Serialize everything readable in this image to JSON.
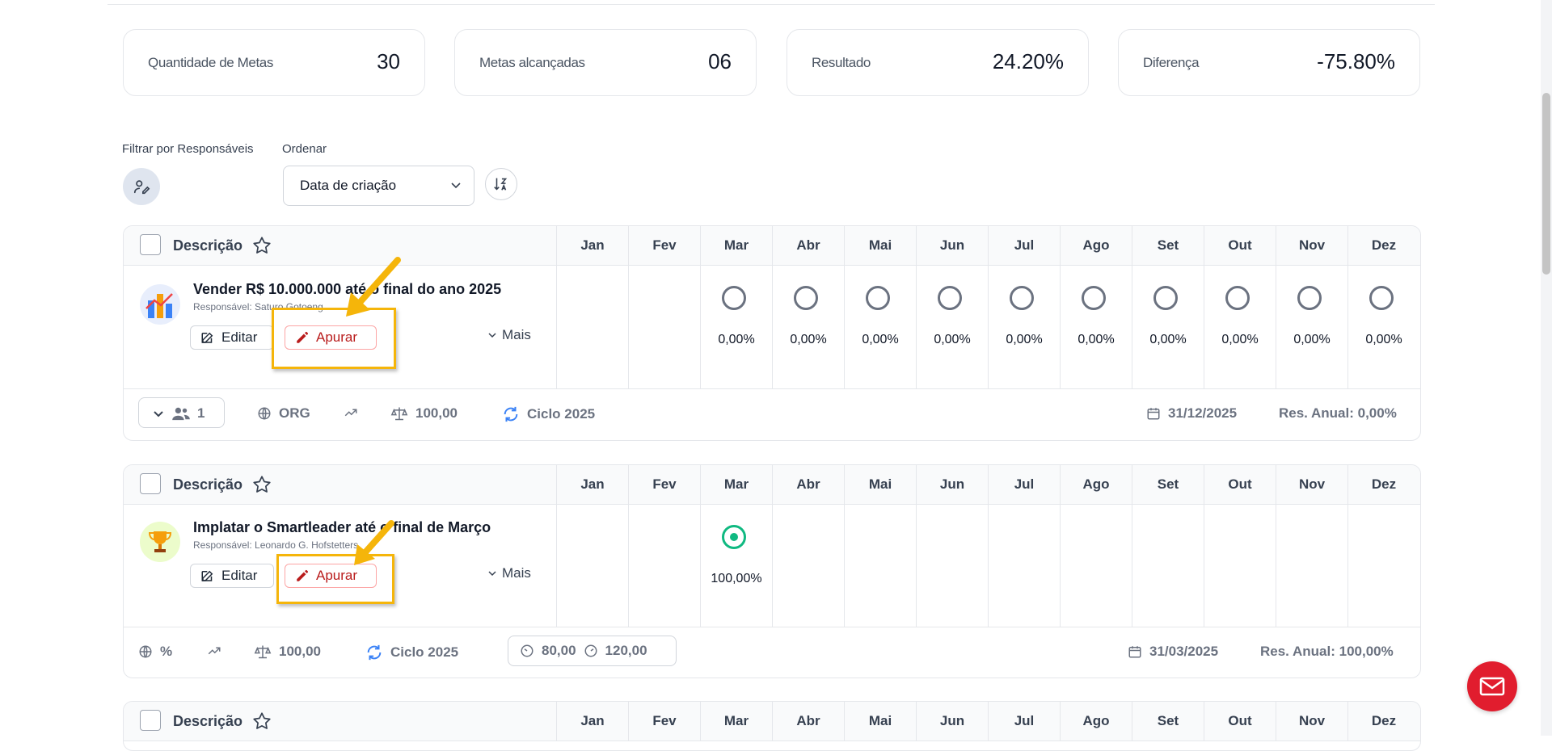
{
  "stats": [
    {
      "label": "Quantidade de Metas",
      "value": "30"
    },
    {
      "label": "Metas alcançadas",
      "value": "06"
    },
    {
      "label": "Resultado",
      "value": "24.20%"
    },
    {
      "label": "Diferença",
      "value": "-75.80%"
    }
  ],
  "filters": {
    "responsaveis_label": "Filtrar por Responsáveis",
    "ordenar_label": "Ordenar",
    "ordenar_value": "Data de criação"
  },
  "table_header": {
    "descricao": "Descrição",
    "months": [
      "Jan",
      "Fev",
      "Mar",
      "Abr",
      "Mai",
      "Jun",
      "Jul",
      "Ago",
      "Set",
      "Out",
      "Nov",
      "Dez"
    ]
  },
  "goals": [
    {
      "title": "Vender R$ 10.000.000 até o final do ano 2025",
      "responsavel": "Responsável: Saturo Gotoeng",
      "edit_label": "Editar",
      "apurar_label": "Apurar",
      "mais_label": "Mais",
      "month_values": [
        "",
        "",
        "0,00%",
        "0,00%",
        "0,00%",
        "0,00%",
        "0,00%",
        "0,00%",
        "0,00%",
        "0,00%",
        "0,00%",
        "0,00%"
      ],
      "footer": {
        "members": "1",
        "scope": "ORG",
        "weight": "100,00",
        "cycle": "Ciclo 2025",
        "date": "31/12/2025",
        "annual": "Res. Anual: 0,00%"
      }
    },
    {
      "title": "Implatar o Smartleader até o final de Março",
      "responsavel": "Responsável: Leonardo G. Hofstetters",
      "edit_label": "Editar",
      "apurar_label": "Apurar",
      "mais_label": "Mais",
      "month_values": [
        "",
        "",
        "100,00%",
        "",
        "",
        "",
        "",
        "",
        "",
        "",
        "",
        ""
      ],
      "footer": {
        "scope": "%",
        "weight": "100,00",
        "cycle": "Ciclo 2025",
        "min": "80,00",
        "max": "120,00",
        "date": "31/03/2025",
        "annual": "Res. Anual: 100,00%"
      }
    }
  ],
  "colors": {
    "accent_red": "#e11d2e",
    "highlight": "#f5b50a",
    "success": "#10b981",
    "cycle_blue": "#3b82f6"
  }
}
